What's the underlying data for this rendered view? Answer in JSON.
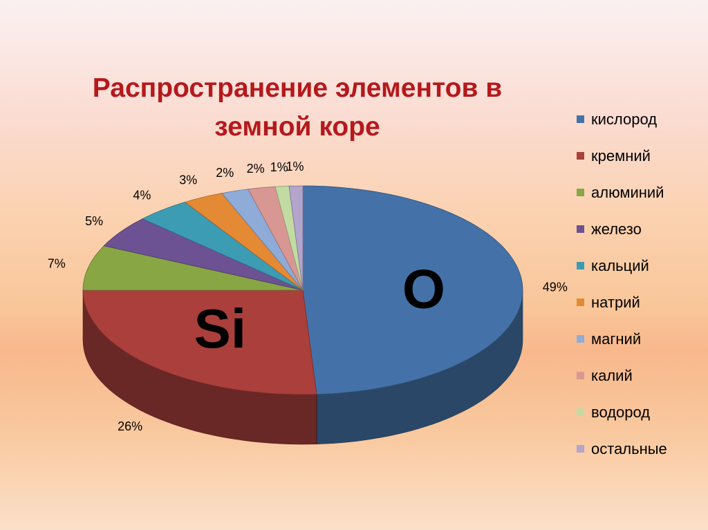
{
  "chart_data": {
    "type": "pie",
    "title": "Распространение элементов в земной коре",
    "slices": [
      {
        "name": "кислород",
        "value": 49,
        "label": "49%",
        "color": "#4472a8"
      },
      {
        "name": "кремний",
        "value": 26,
        "label": "26%",
        "color": "#aa3f3c"
      },
      {
        "name": "алюминий",
        "value": 7,
        "label": "7%",
        "color": "#88a644"
      },
      {
        "name": "железо",
        "value": 5,
        "label": "5%",
        "color": "#6c5193"
      },
      {
        "name": "кальций",
        "value": 4,
        "label": "4%",
        "color": "#3c9cb3"
      },
      {
        "name": "натрий",
        "value": 3,
        "label": "3%",
        "color": "#e48a35"
      },
      {
        "name": "магний",
        "value": 2,
        "label": "2%",
        "color": "#8fabd8"
      },
      {
        "name": "калий",
        "value": 2,
        "label": "2%",
        "color": "#d99794"
      },
      {
        "name": "водород",
        "value": 1,
        "label": "1%",
        "color": "#c2dba3"
      },
      {
        "name": "остальные",
        "value": 1,
        "label": "1%",
        "color": "#b3a5cc"
      }
    ],
    "annotations": [
      {
        "text": "O",
        "slice": "кислород"
      },
      {
        "text": "Si",
        "slice": "кремний"
      }
    ],
    "legend": "right"
  }
}
